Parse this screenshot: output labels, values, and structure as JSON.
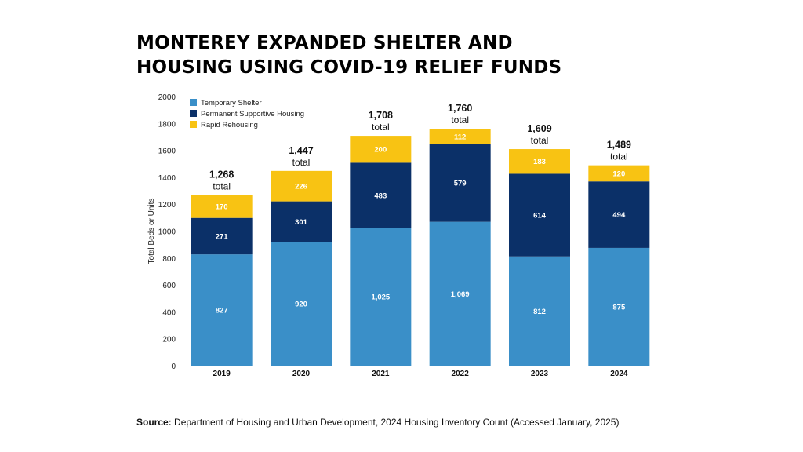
{
  "title_line1": "MONTEREY EXPANDED SHELTER AND",
  "title_line2": "HOUSING USING COVID-19 RELIEF FUNDS",
  "source_label": "Source:",
  "source_text": "Department of Housing and Urban Development, 2024 Housing Inventory Count (Accessed January, 2025)",
  "total_suffix": "total",
  "chart_data": {
    "type": "bar",
    "stacked": true,
    "categories": [
      "2019",
      "2020",
      "2021",
      "2022",
      "2023",
      "2024"
    ],
    "series": [
      {
        "name": "Temporary Shelter",
        "color": "#3a8fc8",
        "values": [
          827,
          920,
          1025,
          1069,
          812,
          875
        ],
        "labels": [
          "827",
          "920",
          "1,025",
          "1,069",
          "812",
          "875"
        ]
      },
      {
        "name": "Permanent Supportive Housing",
        "color": "#0b3068",
        "values": [
          271,
          301,
          483,
          579,
          614,
          494
        ],
        "labels": [
          "271",
          "301",
          "483",
          "579",
          "614",
          "494"
        ]
      },
      {
        "name": "Rapid Rehousing",
        "color": "#f8c313",
        "values": [
          170,
          226,
          200,
          112,
          183,
          120
        ],
        "labels": [
          "170",
          "226",
          "200",
          "112",
          "183",
          "120"
        ]
      }
    ],
    "totals": [
      1268,
      1447,
      1708,
      1760,
      1609,
      1489
    ],
    "total_labels": [
      "1,268",
      "1,447",
      "1,708",
      "1,760",
      "1,609",
      "1,489"
    ],
    "ylabel": "Total Beds or Units",
    "xlabel": "",
    "ylim": [
      0,
      2000
    ],
    "yticks": [
      0,
      200,
      400,
      600,
      800,
      1000,
      1200,
      1400,
      1600,
      1800,
      2000
    ],
    "legend_position": "top-left",
    "grid": false
  }
}
